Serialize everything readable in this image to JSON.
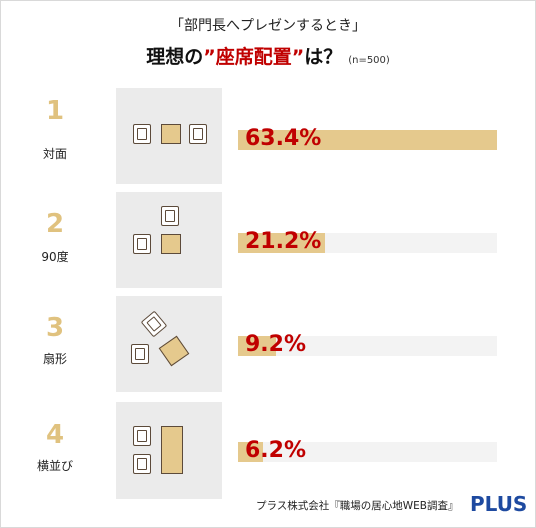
{
  "subtitle": "「部門長へプレゼンするとき」",
  "title": {
    "part1": "理想の",
    "highlight": "”座席配置”",
    "part2": "は？",
    "n": "(n=500)"
  },
  "chart_data": {
    "type": "bar",
    "orientation": "horizontal",
    "title": "理想の”座席配置”は？",
    "categories": [
      "対面",
      "90度",
      "扇形",
      "横並び"
    ],
    "ranks": [
      "1",
      "2",
      "3",
      "4"
    ],
    "values": [
      63.4,
      21.2,
      9.2,
      6.2
    ],
    "value_labels": [
      "63.4%",
      "21.2%",
      "9.2%",
      "6.2%"
    ],
    "unit": "%",
    "xlim": [
      0,
      63.4
    ],
    "colors": {
      "bar": "#e5c98d",
      "value_text": "#c00000",
      "rank_text": "#e0c27f"
    }
  },
  "source": "プラス株式会社『職場の居心地WEB調査』",
  "logo": "PLUS"
}
